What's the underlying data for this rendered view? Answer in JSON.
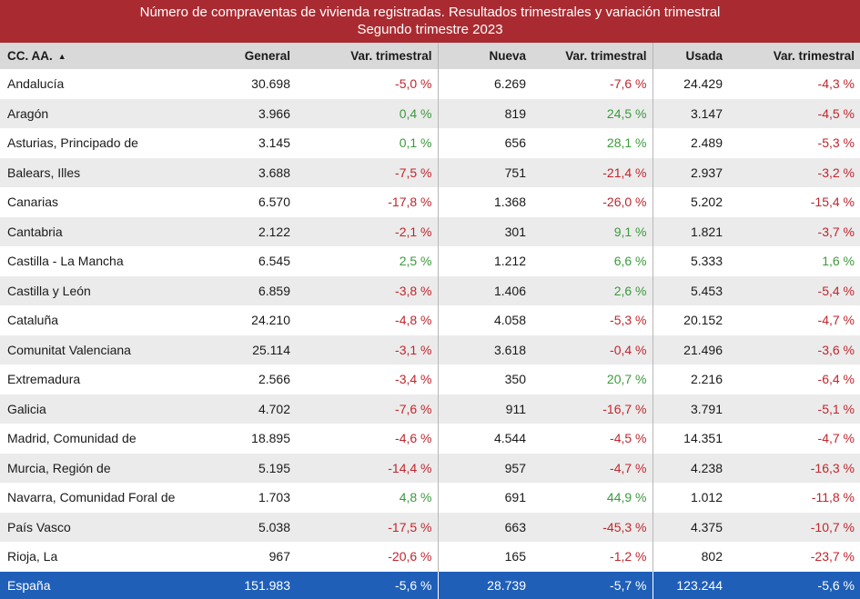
{
  "title": {
    "line1": "Número de compraventas de vivienda registradas. Resultados trimestrales  y variación trimestral",
    "line2": "Segundo trimestre 2023"
  },
  "columns": {
    "region": "CC. AA.",
    "sort_indicator": "▲",
    "general": "General",
    "var_general": "Var. trimestral",
    "nueva": "Nueva",
    "var_nueva": "Var. trimestral",
    "usada": "Usada",
    "var_usada": "Var. trimestral"
  },
  "colors": {
    "title_bg": "#a92b31",
    "header_bg": "#d9d9d9",
    "negative": "#c0262d",
    "positive": "#3c9a3c",
    "total_bg": "#1f5fb8"
  },
  "rows": [
    {
      "region": "Andalucía",
      "general": "30.698",
      "var_general": "-5,0 %",
      "nueva": "6.269",
      "var_nueva": "-7,6 %",
      "usada": "24.429",
      "var_usada": "-4,3 %"
    },
    {
      "region": "Aragón",
      "general": "3.966",
      "var_general": "0,4 %",
      "nueva": "819",
      "var_nueva": "24,5 %",
      "usada": "3.147",
      "var_usada": "-4,5 %"
    },
    {
      "region": "Asturias, Principado de",
      "general": "3.145",
      "var_general": "0,1 %",
      "nueva": "656",
      "var_nueva": "28,1 %",
      "usada": "2.489",
      "var_usada": "-5,3 %"
    },
    {
      "region": "Balears, Illes",
      "general": "3.688",
      "var_general": "-7,5 %",
      "nueva": "751",
      "var_nueva": "-21,4 %",
      "usada": "2.937",
      "var_usada": "-3,2 %"
    },
    {
      "region": "Canarias",
      "general": "6.570",
      "var_general": "-17,8 %",
      "nueva": "1.368",
      "var_nueva": "-26,0 %",
      "usada": "5.202",
      "var_usada": "-15,4 %"
    },
    {
      "region": "Cantabria",
      "general": "2.122",
      "var_general": "-2,1 %",
      "nueva": "301",
      "var_nueva": "9,1 %",
      "usada": "1.821",
      "var_usada": "-3,7 %"
    },
    {
      "region": "Castilla - La Mancha",
      "general": "6.545",
      "var_general": "2,5 %",
      "nueva": "1.212",
      "var_nueva": "6,6 %",
      "usada": "5.333",
      "var_usada": "1,6 %"
    },
    {
      "region": "Castilla y León",
      "general": "6.859",
      "var_general": "-3,8 %",
      "nueva": "1.406",
      "var_nueva": "2,6 %",
      "usada": "5.453",
      "var_usada": "-5,4 %"
    },
    {
      "region": "Cataluña",
      "general": "24.210",
      "var_general": "-4,8 %",
      "nueva": "4.058",
      "var_nueva": "-5,3 %",
      "usada": "20.152",
      "var_usada": "-4,7 %"
    },
    {
      "region": "Comunitat Valenciana",
      "general": "25.114",
      "var_general": "-3,1 %",
      "nueva": "3.618",
      "var_nueva": "-0,4 %",
      "usada": "21.496",
      "var_usada": "-3,6 %"
    },
    {
      "region": "Extremadura",
      "general": "2.566",
      "var_general": "-3,4 %",
      "nueva": "350",
      "var_nueva": "20,7 %",
      "usada": "2.216",
      "var_usada": "-6,4 %"
    },
    {
      "region": "Galicia",
      "general": "4.702",
      "var_general": "-7,6 %",
      "nueva": "911",
      "var_nueva": "-16,7 %",
      "usada": "3.791",
      "var_usada": "-5,1 %"
    },
    {
      "region": "Madrid, Comunidad de",
      "general": "18.895",
      "var_general": "-4,6 %",
      "nueva": "4.544",
      "var_nueva": "-4,5 %",
      "usada": "14.351",
      "var_usada": "-4,7 %"
    },
    {
      "region": "Murcia, Región de",
      "general": "5.195",
      "var_general": "-14,4 %",
      "nueva": "957",
      "var_nueva": "-4,7 %",
      "usada": "4.238",
      "var_usada": "-16,3 %"
    },
    {
      "region": "Navarra, Comunidad Foral de",
      "general": "1.703",
      "var_general": "4,8 %",
      "nueva": "691",
      "var_nueva": "44,9 %",
      "usada": "1.012",
      "var_usada": "-11,8 %"
    },
    {
      "region": "País Vasco",
      "general": "5.038",
      "var_general": "-17,5 %",
      "nueva": "663",
      "var_nueva": "-45,3 %",
      "usada": "4.375",
      "var_usada": "-10,7 %"
    },
    {
      "region": "Rioja, La",
      "general": "967",
      "var_general": "-20,6 %",
      "nueva": "165",
      "var_nueva": "-1,2 %",
      "usada": "802",
      "var_usada": "-23,7 %"
    }
  ],
  "total": {
    "region": "España",
    "general": "151.983",
    "var_general": "-5,6 %",
    "nueva": "28.739",
    "var_nueva": "-5,7 %",
    "usada": "123.244",
    "var_usada": "-5,6 %"
  }
}
